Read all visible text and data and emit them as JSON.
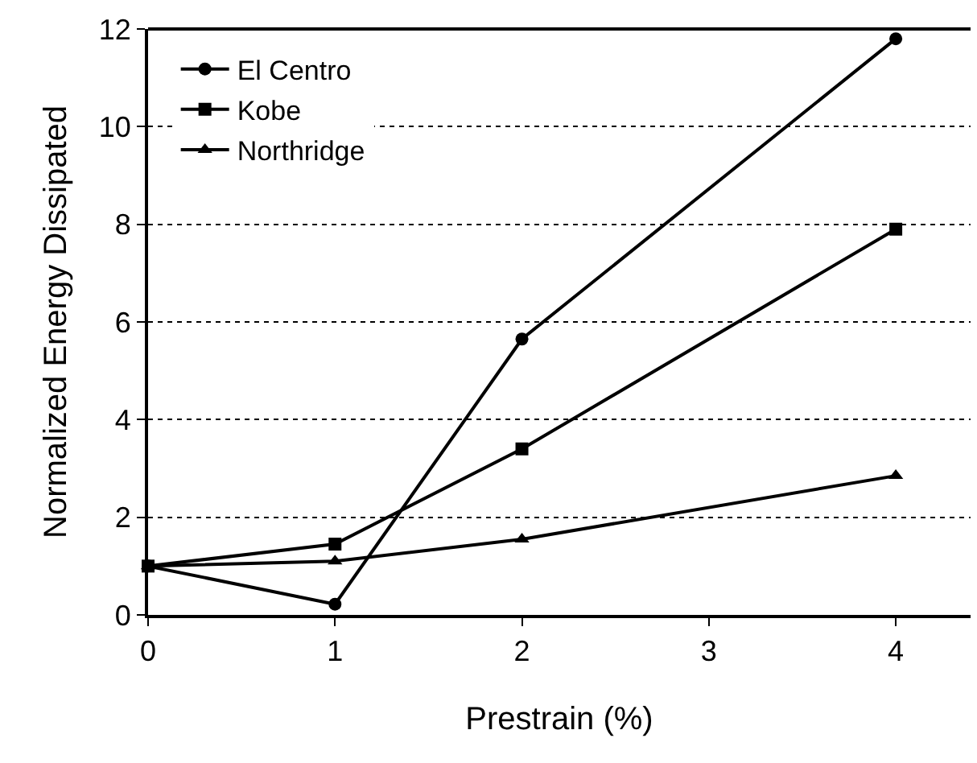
{
  "chart_data": {
    "type": "line",
    "xlabel": "Prestrain (%)",
    "ylabel": "Normalized Energy Dissipated",
    "x": [
      0,
      1,
      2,
      4
    ],
    "series": [
      {
        "name": "El Centro",
        "color": "#000000",
        "marker": "circle",
        "values": [
          1,
          0.22,
          5.65,
          11.8
        ]
      },
      {
        "name": "Kobe",
        "color": "#000000",
        "marker": "square",
        "values": [
          1,
          1.45,
          3.4,
          7.9
        ]
      },
      {
        "name": "Northridge",
        "color": "#000000",
        "marker": "triangle",
        "values": [
          1,
          1.1,
          1.55,
          2.85
        ]
      }
    ],
    "xlim": [
      0,
      4.4
    ],
    "xticks": [
      0,
      1,
      2,
      3,
      4
    ],
    "ylim": [
      0,
      12
    ],
    "yticks": [
      0,
      2,
      4,
      6,
      8,
      10,
      12
    ],
    "grid": "y",
    "legend": "top left",
    "line_style": "solid"
  }
}
